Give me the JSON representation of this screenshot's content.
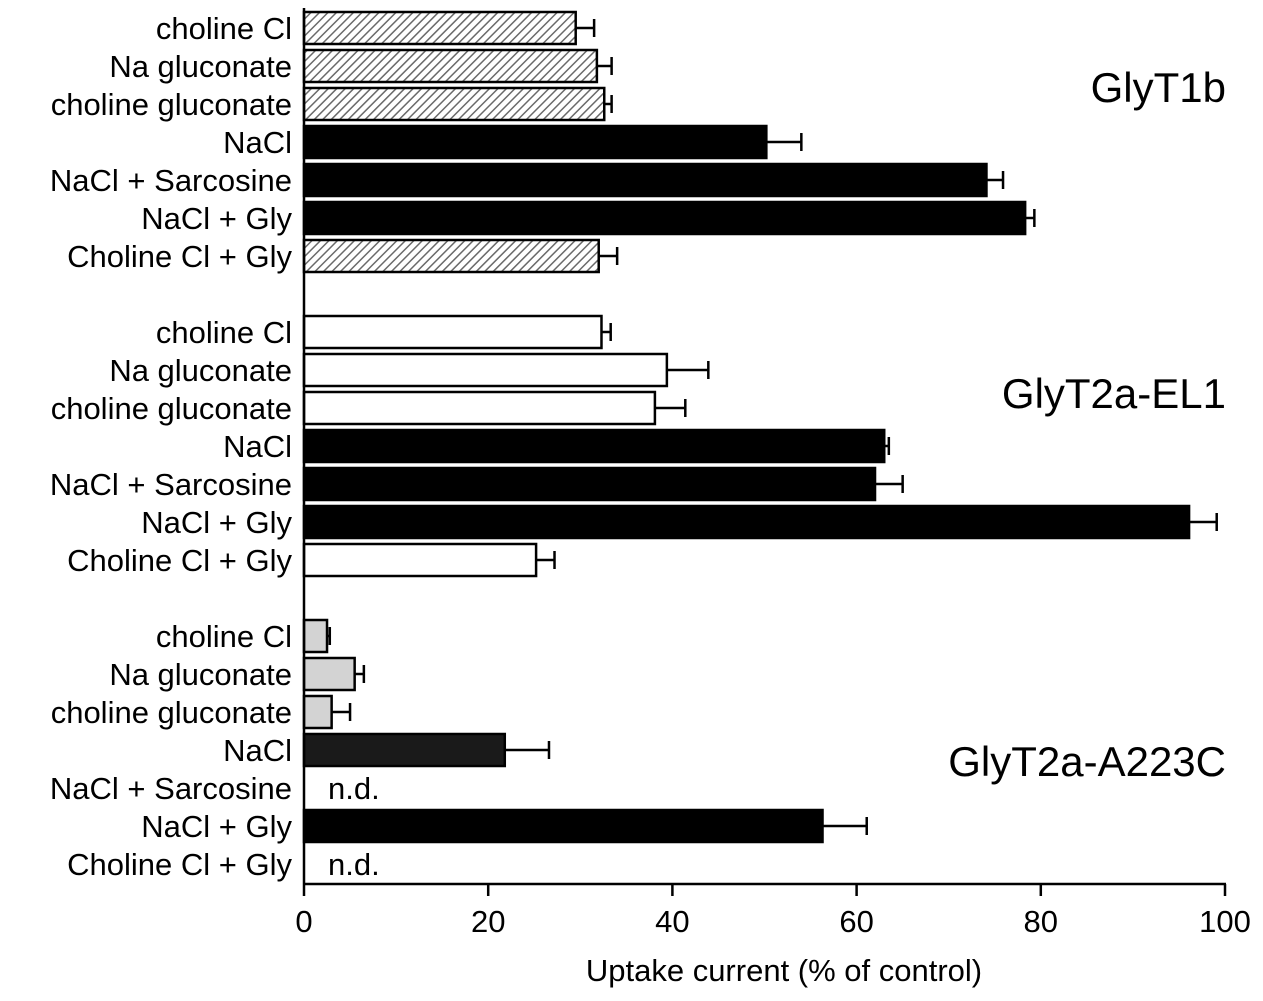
{
  "chart_data": {
    "type": "bar",
    "orientation": "horizontal",
    "xlabel": "Uptake current (% of control)",
    "xlim": [
      0,
      100
    ],
    "xticks": [
      0,
      20,
      40,
      60,
      80,
      100
    ],
    "grid": false,
    "fills": {
      "hatched": "#c8c8c8",
      "white": "#ffffff",
      "lightgray": "#d3d3d3",
      "black": "#000000",
      "darkgray": "#1a1a1a"
    },
    "groups": [
      {
        "name": "GlyT1b",
        "bars": [
          {
            "label": "choline Cl",
            "value": 29.5,
            "error": 2.0,
            "fill": "hatched"
          },
          {
            "label": "Na gluconate",
            "value": 31.8,
            "error": 1.6,
            "fill": "hatched"
          },
          {
            "label": "choline gluconate",
            "value": 32.6,
            "error": 0.8,
            "fill": "hatched"
          },
          {
            "label": "NaCl",
            "value": 50.2,
            "error": 3.8,
            "fill": "black"
          },
          {
            "label": "NaCl + Sarcosine",
            "value": 74.1,
            "error": 1.8,
            "fill": "black"
          },
          {
            "label": "NaCl + Gly",
            "value": 78.3,
            "error": 1.0,
            "fill": "black"
          },
          {
            "label": "Choline Cl + Gly",
            "value": 32.0,
            "error": 2.0,
            "fill": "hatched"
          }
        ]
      },
      {
        "name": "GlyT2a-EL1",
        "bars": [
          {
            "label": "choline Cl",
            "value": 32.3,
            "error": 1.0,
            "fill": "white"
          },
          {
            "label": "Na gluconate",
            "value": 39.4,
            "error": 4.5,
            "fill": "white"
          },
          {
            "label": "choline gluconate",
            "value": 38.1,
            "error": 3.3,
            "fill": "white"
          },
          {
            "label": "NaCl",
            "value": 63.0,
            "error": 0.5,
            "fill": "black"
          },
          {
            "label": "NaCl + Sarcosine",
            "value": 62.0,
            "error": 3.0,
            "fill": "black"
          },
          {
            "label": "NaCl + Gly",
            "value": 96.1,
            "error": 3.0,
            "fill": "black"
          },
          {
            "label": "Choline Cl + Gly",
            "value": 25.2,
            "error": 2.0,
            "fill": "white"
          }
        ]
      },
      {
        "name": "GlyT2a-A223C",
        "bars": [
          {
            "label": "choline Cl",
            "value": 2.5,
            "error": 0.3,
            "fill": "lightgray"
          },
          {
            "label": "Na gluconate",
            "value": 5.5,
            "error": 1.0,
            "fill": "lightgray"
          },
          {
            "label": "choline gluconate",
            "value": 3.0,
            "error": 2.0,
            "fill": "lightgray"
          },
          {
            "label": "NaCl",
            "value": 21.8,
            "error": 4.8,
            "fill": "darkgray"
          },
          {
            "label": "NaCl + Sarcosine",
            "value": null,
            "error": null,
            "fill": "none",
            "note": "n.d."
          },
          {
            "label": "NaCl + Gly",
            "value": 56.3,
            "error": 4.8,
            "fill": "black"
          },
          {
            "label": "Choline Cl + Gly",
            "value": null,
            "error": null,
            "fill": "none",
            "note": "n.d."
          }
        ]
      }
    ]
  }
}
